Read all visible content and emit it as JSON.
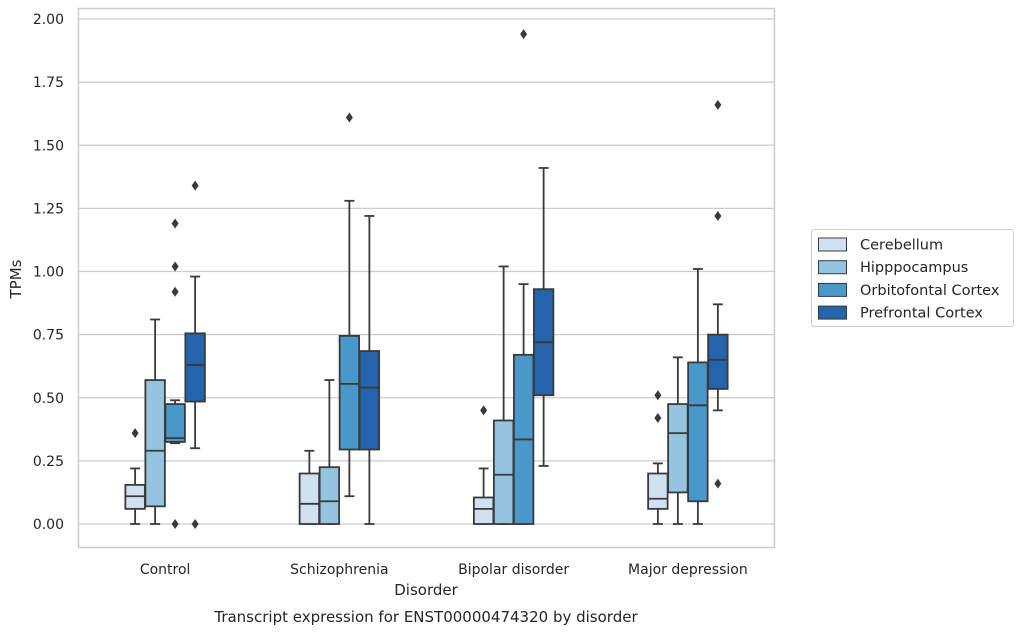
{
  "chart_data": {
    "type": "box",
    "title": "Transcript expression for ENST00000474320 by disorder",
    "xlabel": "Disorder",
    "ylabel": "TPMs",
    "ylim": [
      -0.095,
      2.04
    ],
    "yticks": [
      "0.00",
      "0.25",
      "0.50",
      "0.75",
      "1.00",
      "1.25",
      "1.50",
      "1.75",
      "2.00"
    ],
    "ytick_values": [
      0,
      0.25,
      0.5,
      0.75,
      1.0,
      1.25,
      1.5,
      1.75,
      2.0
    ],
    "grid": "horizontal",
    "legend_position": "right",
    "categories": [
      "Control",
      "Schizophrenia",
      "Bipolar disorder",
      "Major depression"
    ],
    "series": [
      {
        "name": "Cerebellum",
        "color": "#d0e1f2",
        "boxes": [
          {
            "min": 0.0,
            "q1": 0.06,
            "median": 0.11,
            "q3": 0.155,
            "max": 0.22,
            "outliers": [
              0.36
            ]
          },
          {
            "min": 0.0,
            "q1": 0.0,
            "median": 0.08,
            "q3": 0.2,
            "max": 0.29,
            "outliers": []
          },
          {
            "min": 0.0,
            "q1": 0.0,
            "median": 0.06,
            "q3": 0.105,
            "max": 0.22,
            "outliers": [
              0.45
            ]
          },
          {
            "min": 0.0,
            "q1": 0.06,
            "median": 0.1,
            "q3": 0.2,
            "max": 0.24,
            "outliers": [
              0.51,
              0.42
            ]
          }
        ]
      },
      {
        "name": "Hipppocampus",
        "color": "#94c4df",
        "boxes": [
          {
            "min": 0.0,
            "q1": 0.07,
            "median": 0.29,
            "q3": 0.57,
            "max": 0.81,
            "outliers": []
          },
          {
            "min": 0.0,
            "q1": 0.0,
            "median": 0.09,
            "q3": 0.225,
            "max": 0.57,
            "outliers": []
          },
          {
            "min": 0.0,
            "q1": 0.0,
            "median": 0.195,
            "q3": 0.41,
            "max": 1.02,
            "outliers": []
          },
          {
            "min": 0.0,
            "q1": 0.125,
            "median": 0.36,
            "q3": 0.475,
            "max": 0.66,
            "outliers": []
          }
        ]
      },
      {
        "name": "Orbitofontal Cortex",
        "color": "#4a98c9",
        "boxes": [
          {
            "min": 0.32,
            "q1": 0.325,
            "median": 0.34,
            "q3": 0.475,
            "max": 0.49,
            "outliers": [
              0.92,
              1.02,
              1.19,
              0.0
            ]
          },
          {
            "min": 0.11,
            "q1": 0.295,
            "median": 0.555,
            "q3": 0.745,
            "max": 1.28,
            "outliers": [
              1.61
            ]
          },
          {
            "min": 0.0,
            "q1": 0.0,
            "median": 0.335,
            "q3": 0.67,
            "max": 0.95,
            "outliers": [
              1.94
            ]
          },
          {
            "min": 0.0,
            "q1": 0.09,
            "median": 0.47,
            "q3": 0.64,
            "max": 1.01,
            "outliers": []
          }
        ]
      },
      {
        "name": "Prefrontal Cortex",
        "color": "#2464ab",
        "boxes": [
          {
            "min": 0.3,
            "q1": 0.485,
            "median": 0.63,
            "q3": 0.755,
            "max": 0.98,
            "outliers": [
              1.34,
              0.0
            ]
          },
          {
            "min": 0.0,
            "q1": 0.295,
            "median": 0.54,
            "q3": 0.685,
            "max": 1.22,
            "outliers": []
          },
          {
            "min": 0.23,
            "q1": 0.51,
            "median": 0.72,
            "q3": 0.93,
            "max": 1.41,
            "outliers": []
          },
          {
            "min": 0.45,
            "q1": 0.535,
            "median": 0.65,
            "q3": 0.75,
            "max": 0.87,
            "outliers": [
              1.66,
              1.22,
              0.16
            ]
          }
        ]
      }
    ]
  }
}
